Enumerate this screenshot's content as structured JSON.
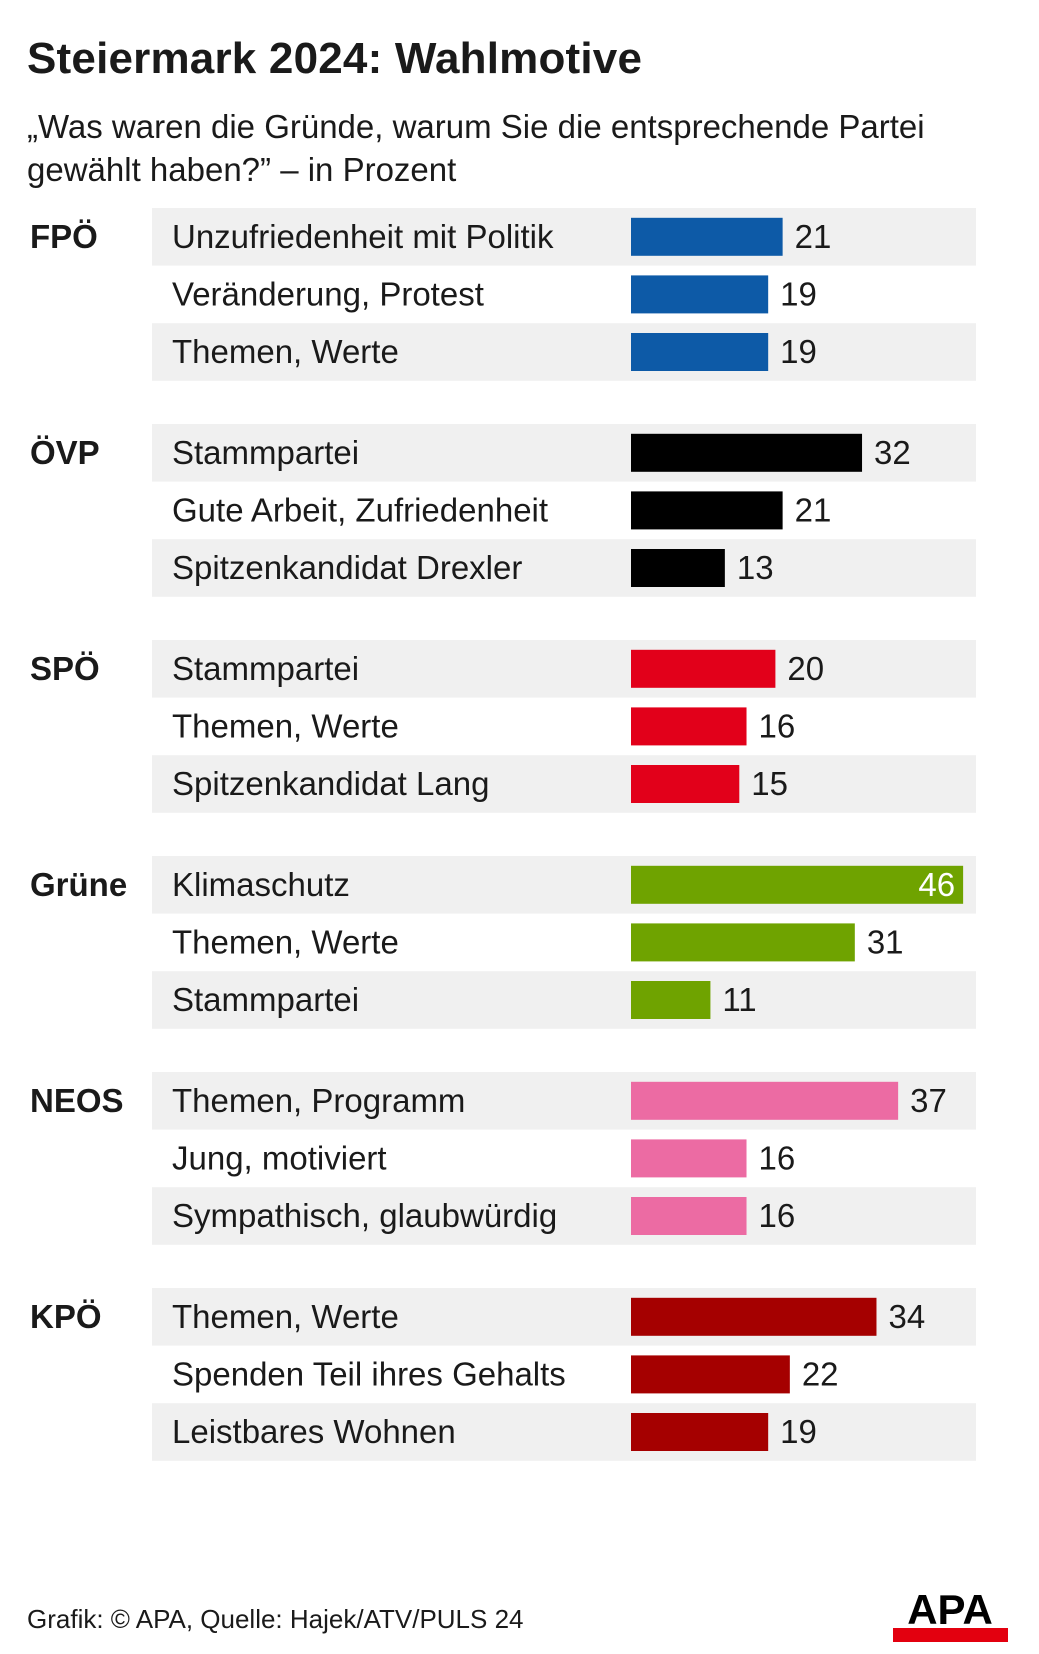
{
  "title": "Steiermark 2024: Wahlmotive",
  "subtitle": "„Was waren die Gründe, warum Sie die entsprechende Partei gewählt haben?” – in Prozent",
  "footer": "Grafik: © APA, Quelle: Hajek/ATV/PULS 24",
  "logo_text": "APA",
  "colors": {
    "row_shade": "#f0f0f0",
    "logo_red": "#e3000f"
  },
  "chart_data": {
    "type": "bar",
    "orientation": "horizontal",
    "unit": "Prozent",
    "groups": [
      {
        "name": "FPÖ",
        "color": "#0d5aa7",
        "items": [
          {
            "label": "Unzufriedenheit mit Politik",
            "value": 21
          },
          {
            "label": "Veränderung, Protest",
            "value": 19
          },
          {
            "label": "Themen, Werte",
            "value": 19
          }
        ]
      },
      {
        "name": "ÖVP",
        "color": "#000000",
        "items": [
          {
            "label": "Stammpartei",
            "value": 32
          },
          {
            "label": "Gute Arbeit, Zufriedenheit",
            "value": 21
          },
          {
            "label": "Spitzenkandidat Drexler",
            "value": 13
          }
        ]
      },
      {
        "name": "SPÖ",
        "color": "#e2001a",
        "items": [
          {
            "label": "Stammpartei",
            "value": 20
          },
          {
            "label": "Themen, Werte",
            "value": 16
          },
          {
            "label": "Spitzenkandidat Lang",
            "value": 15
          }
        ]
      },
      {
        "name": "Grüne",
        "color": "#6fa300",
        "items": [
          {
            "label": "Klimaschutz",
            "value": 46
          },
          {
            "label": "Themen, Werte",
            "value": 31
          },
          {
            "label": "Stammpartei",
            "value": 11
          }
        ]
      },
      {
        "name": "NEOS",
        "color": "#ec6ba3",
        "items": [
          {
            "label": "Themen, Programm",
            "value": 37
          },
          {
            "label": "Jung, motiviert",
            "value": 16
          },
          {
            "label": "Sympathisch, glaubwürdig",
            "value": 16
          }
        ]
      },
      {
        "name": "KPÖ",
        "color": "#a50000",
        "items": [
          {
            "label": "Themen, Werte",
            "value": 34
          },
          {
            "label": "Spenden Teil ihres Gehalts",
            "value": 22
          },
          {
            "label": "Leistbares Wohnen",
            "value": 19
          }
        ]
      }
    ]
  }
}
